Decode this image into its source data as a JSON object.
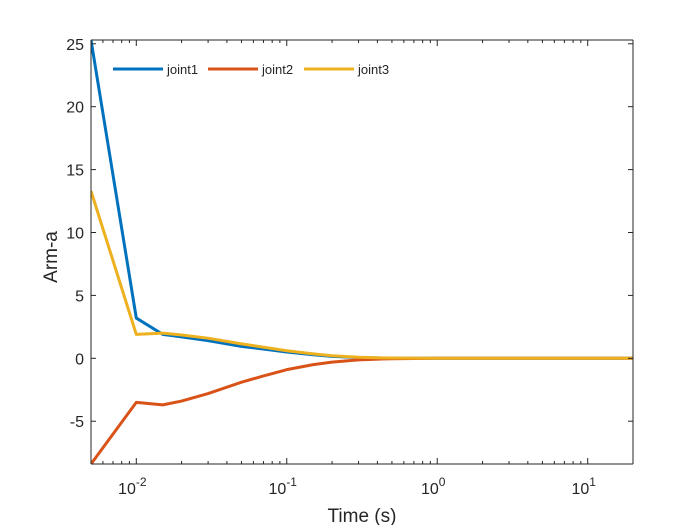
{
  "chart_data": {
    "type": "line",
    "xlabel": "Time (s)",
    "ylabel": "Arm-a",
    "xscale": "log",
    "xlim": [
      0.005,
      20
    ],
    "ylim": [
      -8.4,
      25.3
    ],
    "grid": false,
    "legend_position": "top-left",
    "legend_orientation": "horizontal",
    "x_ticks": [
      {
        "value": 0.01,
        "base": "10",
        "exp": "-2"
      },
      {
        "value": 0.1,
        "base": "10",
        "exp": "-1"
      },
      {
        "value": 1,
        "base": "10",
        "exp": "0"
      },
      {
        "value": 10,
        "base": "10",
        "exp": "1"
      }
    ],
    "y_ticks": [
      {
        "value": 25,
        "label": "25"
      },
      {
        "value": 20,
        "label": "20"
      },
      {
        "value": 15,
        "label": "15"
      },
      {
        "value": 10,
        "label": "10"
      },
      {
        "value": 5,
        "label": "5"
      },
      {
        "value": 0,
        "label": "0"
      },
      {
        "value": -5,
        "label": "-5"
      }
    ],
    "series": [
      {
        "name": "joint1",
        "color": "#0072BD",
        "x": [
          0.005,
          0.01,
          0.015,
          0.02,
          0.03,
          0.05,
          0.1,
          0.15,
          0.2,
          0.3,
          0.5,
          1,
          2,
          5,
          10,
          20
        ],
        "y": [
          25.3,
          3.2,
          1.9,
          1.7,
          1.4,
          0.95,
          0.5,
          0.28,
          0.15,
          0.06,
          0.01,
          0,
          0,
          0,
          0,
          0
        ]
      },
      {
        "name": "joint2",
        "color": "#D95319",
        "x": [
          0.005,
          0.01,
          0.015,
          0.02,
          0.03,
          0.05,
          0.07,
          0.1,
          0.15,
          0.2,
          0.3,
          0.5,
          1,
          2,
          5,
          10,
          20
        ],
        "y": [
          -8.4,
          -3.5,
          -3.7,
          -3.4,
          -2.8,
          -1.9,
          -1.4,
          -0.9,
          -0.5,
          -0.3,
          -0.12,
          -0.03,
          0,
          0,
          0,
          0,
          0
        ]
      },
      {
        "name": "joint3",
        "color": "#EDB120",
        "x": [
          0.005,
          0.01,
          0.015,
          0.02,
          0.03,
          0.05,
          0.1,
          0.15,
          0.2,
          0.3,
          0.5,
          1,
          2,
          5,
          10,
          20
        ],
        "y": [
          13.3,
          1.9,
          2.0,
          1.85,
          1.6,
          1.15,
          0.6,
          0.35,
          0.2,
          0.08,
          0.02,
          0,
          0,
          0,
          0,
          0
        ]
      }
    ]
  }
}
